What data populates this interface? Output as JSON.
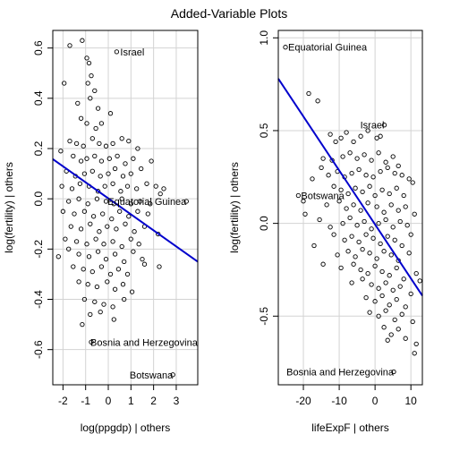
{
  "figure_title": "Added-Variable Plots",
  "chart_data": [
    {
      "type": "scatter",
      "xlabel": "log(ppgdp) | others",
      "ylabel": "log(fertility) | others",
      "xlim": [
        -2.45,
        3.95
      ],
      "ylim": [
        -0.74,
        0.67
      ],
      "xticks": [
        -2,
        -1,
        0,
        1,
        2,
        3
      ],
      "yticks": [
        -0.6,
        -0.4,
        -0.2,
        0.0,
        0.2,
        0.4,
        0.6
      ],
      "ytick_labels": [
        "-0.6",
        "-0.4",
        "-0.2",
        "0.0",
        "0.2",
        "0.4",
        "0.6"
      ],
      "grid": true,
      "fit_line": {
        "color": "#0000cc",
        "x": [
          -2.45,
          3.95
        ],
        "y": [
          0.158,
          -0.25
        ]
      },
      "labeled_points": [
        {
          "label": "Israel",
          "x": 0.37,
          "y": 0.585
        },
        {
          "label": "Equatorial Guinea",
          "x": 3.45,
          "y": -0.01
        },
        {
          "label": "Bosnia and Herzegovina",
          "x": -0.75,
          "y": -0.57
        },
        {
          "label": "Botswana",
          "x": 2.85,
          "y": -0.7
        }
      ],
      "points": [
        [
          -1.7,
          0.61
        ],
        [
          -1.15,
          0.63
        ],
        [
          -0.95,
          0.56
        ],
        [
          -0.85,
          0.54
        ],
        [
          -0.75,
          0.49
        ],
        [
          -0.9,
          0.46
        ],
        [
          -0.6,
          0.43
        ],
        [
          -1.95,
          0.46
        ],
        [
          -1.35,
          0.38
        ],
        [
          -0.8,
          0.4
        ],
        [
          -0.45,
          0.36
        ],
        [
          -1.2,
          0.32
        ],
        [
          -0.95,
          0.3
        ],
        [
          -0.55,
          0.28
        ],
        [
          -0.3,
          0.3
        ],
        [
          0.1,
          0.34
        ],
        [
          -1.7,
          0.23
        ],
        [
          -1.4,
          0.22
        ],
        [
          -1.1,
          0.21
        ],
        [
          -0.7,
          0.24
        ],
        [
          -0.4,
          0.22
        ],
        [
          -0.1,
          0.21
        ],
        [
          0.2,
          0.22
        ],
        [
          0.6,
          0.24
        ],
        [
          0.9,
          0.23
        ],
        [
          -2.1,
          0.19
        ],
        [
          -1.55,
          0.17
        ],
        [
          -1.2,
          0.15
        ],
        [
          -0.95,
          0.16
        ],
        [
          -0.6,
          0.17
        ],
        [
          -0.3,
          0.15
        ],
        [
          0.05,
          0.16
        ],
        [
          0.4,
          0.17
        ],
        [
          0.75,
          0.14
        ],
        [
          1.1,
          0.16
        ],
        [
          1.3,
          0.2
        ],
        [
          -1.85,
          0.11
        ],
        [
          -1.45,
          0.09
        ],
        [
          -1.05,
          0.1
        ],
        [
          -0.7,
          0.11
        ],
        [
          -0.35,
          0.09
        ],
        [
          0.0,
          0.1
        ],
        [
          0.3,
          0.12
        ],
        [
          0.65,
          0.09
        ],
        [
          1.0,
          0.1
        ],
        [
          1.45,
          0.12
        ],
        [
          1.9,
          0.15
        ],
        [
          -2.05,
          0.05
        ],
        [
          -1.6,
          0.04
        ],
        [
          -1.25,
          0.06
        ],
        [
          -0.85,
          0.05
        ],
        [
          -0.45,
          0.03
        ],
        [
          -0.15,
          0.05
        ],
        [
          0.2,
          0.06
        ],
        [
          0.55,
          0.03
        ],
        [
          0.85,
          0.05
        ],
        [
          1.25,
          0.04
        ],
        [
          1.7,
          0.06
        ],
        [
          2.1,
          0.05
        ],
        [
          2.45,
          0.04
        ],
        [
          -1.75,
          -0.01
        ],
        [
          -1.3,
          0.0
        ],
        [
          -0.9,
          -0.02
        ],
        [
          -0.5,
          0.0
        ],
        [
          -0.1,
          -0.01
        ],
        [
          0.25,
          -0.02
        ],
        [
          0.6,
          0.0
        ],
        [
          1.0,
          -0.02
        ],
        [
          1.4,
          -0.01
        ],
        [
          1.85,
          -0.02
        ],
        [
          2.3,
          0.02
        ],
        [
          -2.0,
          -0.05
        ],
        [
          -1.5,
          -0.06
        ],
        [
          -1.05,
          -0.05
        ],
        [
          -0.65,
          -0.07
        ],
        [
          -0.25,
          -0.06
        ],
        [
          0.15,
          -0.08
        ],
        [
          0.5,
          -0.05
        ],
        [
          0.9,
          -0.07
        ],
        [
          1.3,
          -0.05
        ],
        [
          1.75,
          -0.06
        ],
        [
          -1.65,
          -0.11
        ],
        [
          -1.2,
          -0.12
        ],
        [
          -0.8,
          -0.1
        ],
        [
          -0.4,
          -0.13
        ],
        [
          -0.05,
          -0.11
        ],
        [
          0.35,
          -0.12
        ],
        [
          0.75,
          -0.1
        ],
        [
          1.15,
          -0.13
        ],
        [
          1.6,
          -0.11
        ],
        [
          2.2,
          -0.14
        ],
        [
          -1.9,
          -0.16
        ],
        [
          -1.4,
          -0.17
        ],
        [
          -0.95,
          -0.18
        ],
        [
          -0.55,
          -0.16
        ],
        [
          -0.2,
          -0.18
        ],
        [
          0.2,
          -0.17
        ],
        [
          0.6,
          -0.19
        ],
        [
          1.0,
          -0.16
        ],
        [
          1.35,
          -0.18
        ],
        [
          -2.2,
          -0.23
        ],
        [
          -1.75,
          -0.2
        ],
        [
          -1.3,
          -0.22
        ],
        [
          -0.85,
          -0.23
        ],
        [
          -0.45,
          -0.21
        ],
        [
          -0.1,
          -0.24
        ],
        [
          0.3,
          -0.22
        ],
        [
          0.7,
          -0.25
        ],
        [
          1.1,
          -0.21
        ],
        [
          1.5,
          -0.24
        ],
        [
          -1.55,
          -0.27
        ],
        [
          -1.1,
          -0.28
        ],
        [
          -0.7,
          -0.29
        ],
        [
          -0.3,
          -0.27
        ],
        [
          0.1,
          -0.3
        ],
        [
          0.45,
          -0.28
        ],
        [
          0.85,
          -0.3
        ],
        [
          2.25,
          -0.27
        ],
        [
          -1.3,
          -0.33
        ],
        [
          -0.9,
          -0.34
        ],
        [
          -0.5,
          -0.35
        ],
        [
          -0.05,
          -0.33
        ],
        [
          0.3,
          -0.36
        ],
        [
          0.65,
          -0.34
        ],
        [
          1.05,
          -0.37
        ],
        [
          -1.05,
          -0.4
        ],
        [
          -0.6,
          -0.41
        ],
        [
          -0.2,
          -0.42
        ],
        [
          0.2,
          -0.43
        ],
        [
          0.7,
          -0.4
        ],
        [
          -0.8,
          -0.46
        ],
        [
          -0.35,
          -0.45
        ],
        [
          -1.15,
          -0.5
        ],
        [
          0.25,
          -0.48
        ],
        [
          1.6,
          -0.26
        ]
      ]
    },
    {
      "type": "scatter",
      "xlabel": "lifeExpF | others",
      "ylabel": "log(fertility) | others",
      "xlim": [
        -27,
        13.2
      ],
      "ylim": [
        -0.87,
        1.04
      ],
      "xticks": [
        -20,
        -10,
        0,
        10
      ],
      "yticks": [
        -0.5,
        0.0,
        0.5,
        1.0
      ],
      "ytick_labels": [
        "-0.5",
        "0.0",
        "0.5",
        "1.0"
      ],
      "grid": true,
      "fit_line": {
        "color": "#0000cc",
        "x": [
          -27,
          13.2
        ],
        "y": [
          0.78,
          -0.39
        ]
      },
      "labeled_points": [
        {
          "label": "Equatorial Guinea",
          "x": -25.0,
          "y": 0.95
        },
        {
          "label": "Israel",
          "x": 2.6,
          "y": 0.53
        },
        {
          "label": "Botswana",
          "x": -21.4,
          "y": 0.15
        },
        {
          "label": "Bosnia and Herzegovina",
          "x": 5.2,
          "y": -0.8
        }
      ],
      "points": [
        [
          -18.5,
          0.7
        ],
        [
          -16.0,
          0.66
        ],
        [
          -12.5,
          0.48
        ],
        [
          -11.0,
          0.44
        ],
        [
          -9.5,
          0.46
        ],
        [
          -8.0,
          0.49
        ],
        [
          -6.0,
          0.44
        ],
        [
          -4.0,
          0.47
        ],
        [
          -2.0,
          0.5
        ],
        [
          0.5,
          0.46
        ],
        [
          1.5,
          0.47
        ],
        [
          -14.5,
          0.35
        ],
        [
          -15.0,
          0.3
        ],
        [
          -12.0,
          0.34
        ],
        [
          -9.0,
          0.36
        ],
        [
          -7.0,
          0.38
        ],
        [
          -5.0,
          0.35
        ],
        [
          -3.0,
          0.37
        ],
        [
          -1.0,
          0.34
        ],
        [
          1.0,
          0.38
        ],
        [
          3.0,
          0.33
        ],
        [
          5.0,
          0.36
        ],
        [
          6.5,
          0.31
        ],
        [
          -17.5,
          0.24
        ],
        [
          -13.0,
          0.26
        ],
        [
          -10.5,
          0.28
        ],
        [
          -8.5,
          0.25
        ],
        [
          -6.5,
          0.27
        ],
        [
          -4.5,
          0.29
        ],
        [
          -2.5,
          0.26
        ],
        [
          -0.5,
          0.25
        ],
        [
          1.5,
          0.28
        ],
        [
          3.5,
          0.3
        ],
        [
          5.5,
          0.27
        ],
        [
          7.5,
          0.26
        ],
        [
          9.5,
          0.24
        ],
        [
          -20.0,
          0.12
        ],
        [
          -19.5,
          0.05
        ],
        [
          -11.5,
          0.2
        ],
        [
          -9.5,
          0.18
        ],
        [
          -7.5,
          0.16
        ],
        [
          -5.5,
          0.19
        ],
        [
          -3.5,
          0.17
        ],
        [
          -1.5,
          0.2
        ],
        [
          0.0,
          0.15
        ],
        [
          2.0,
          0.18
        ],
        [
          4.0,
          0.16
        ],
        [
          6.0,
          0.19
        ],
        [
          8.0,
          0.15
        ],
        [
          10.5,
          0.22
        ],
        [
          -13.5,
          0.1
        ],
        [
          -10.0,
          0.12
        ],
        [
          -8.0,
          0.08
        ],
        [
          -6.0,
          0.1
        ],
        [
          -4.0,
          0.07
        ],
        [
          -2.0,
          0.11
        ],
        [
          0.5,
          0.09
        ],
        [
          2.5,
          0.06
        ],
        [
          4.5,
          0.1
        ],
        [
          6.5,
          0.07
        ],
        [
          8.5,
          0.09
        ],
        [
          11.0,
          0.05
        ],
        [
          -15.5,
          0.02
        ],
        [
          -12.5,
          -0.02
        ],
        [
          -9.0,
          0.0
        ],
        [
          -7.0,
          0.03
        ],
        [
          -5.0,
          -0.01
        ],
        [
          -3.0,
          0.01
        ],
        [
          -1.0,
          -0.03
        ],
        [
          1.0,
          0.0
        ],
        [
          3.0,
          0.02
        ],
        [
          5.0,
          -0.02
        ],
        [
          7.0,
          0.01
        ],
        [
          9.0,
          -0.01
        ],
        [
          -17.0,
          -0.12
        ],
        [
          -11.5,
          -0.06
        ],
        [
          -8.5,
          -0.09
        ],
        [
          -6.5,
          -0.07
        ],
        [
          -4.5,
          -0.1
        ],
        [
          -2.5,
          -0.06
        ],
        [
          -0.5,
          -0.08
        ],
        [
          1.5,
          -0.11
        ],
        [
          3.5,
          -0.07
        ],
        [
          5.5,
          -0.09
        ],
        [
          7.5,
          -0.12
        ],
        [
          10.0,
          -0.06
        ],
        [
          -10.5,
          -0.17
        ],
        [
          -7.5,
          -0.15
        ],
        [
          -5.5,
          -0.18
        ],
        [
          -3.5,
          -0.14
        ],
        [
          -1.5,
          -0.16
        ],
        [
          0.5,
          -0.19
        ],
        [
          2.5,
          -0.15
        ],
        [
          4.5,
          -0.17
        ],
        [
          6.5,
          -0.2
        ],
        [
          9.5,
          -0.16
        ],
        [
          -14.5,
          -0.22
        ],
        [
          -9.5,
          -0.24
        ],
        [
          -6.0,
          -0.22
        ],
        [
          -4.0,
          -0.25
        ],
        [
          -2.0,
          -0.27
        ],
        [
          0.0,
          -0.23
        ],
        [
          2.0,
          -0.26
        ],
        [
          4.0,
          -0.28
        ],
        [
          6.0,
          -0.24
        ],
        [
          8.0,
          -0.3
        ],
        [
          11.5,
          -0.27
        ],
        [
          -6.5,
          -0.32
        ],
        [
          -3.5,
          -0.3
        ],
        [
          -1.0,
          -0.33
        ],
        [
          1.0,
          -0.35
        ],
        [
          3.0,
          -0.32
        ],
        [
          5.0,
          -0.36
        ],
        [
          7.0,
          -0.34
        ],
        [
          10.0,
          -0.38
        ],
        [
          12.5,
          -0.31
        ],
        [
          -2.5,
          -0.4
        ],
        [
          0.0,
          -0.42
        ],
        [
          2.0,
          -0.39
        ],
        [
          4.0,
          -0.44
        ],
        [
          6.0,
          -0.41
        ],
        [
          8.5,
          -0.45
        ],
        [
          -1.5,
          -0.48
        ],
        [
          1.0,
          -0.5
        ],
        [
          3.0,
          -0.47
        ],
        [
          5.5,
          -0.52
        ],
        [
          7.5,
          -0.49
        ],
        [
          10.5,
          -0.53
        ],
        [
          2.5,
          -0.56
        ],
        [
          4.5,
          -0.6
        ],
        [
          6.5,
          -0.57
        ],
        [
          8.5,
          -0.62
        ],
        [
          11.5,
          -0.65
        ],
        [
          11.0,
          -0.7
        ],
        [
          3.5,
          -0.63
        ]
      ]
    }
  ]
}
